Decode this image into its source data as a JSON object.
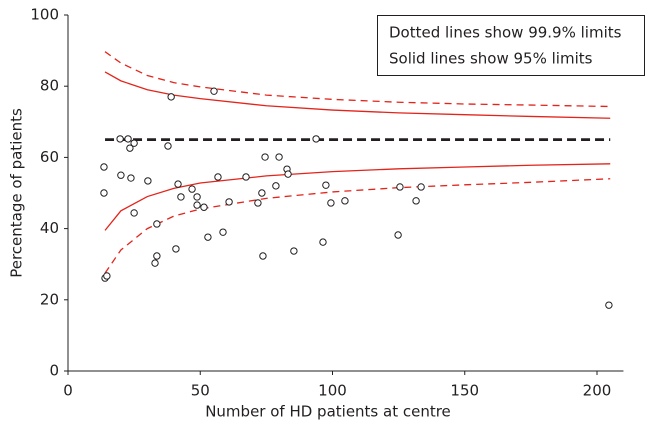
{
  "chart_data": {
    "type": "scatter",
    "x_label": "Number of HD patients at centre",
    "y_label": "Percentage of patients",
    "annotations": [
      "Dotted lines show 99.9% limits",
      "Solid lines show 95% limits"
    ],
    "xlim": [
      0,
      210
    ],
    "xticks": [
      0,
      50,
      100,
      150,
      200
    ],
    "ylim": [
      0,
      100
    ],
    "yticks": [
      0,
      20,
      40,
      60,
      80,
      100
    ],
    "grid": false,
    "points": {
      "color": "#231f20",
      "x": [
        14,
        13.6,
        13.6,
        14.7,
        19.7,
        20,
        22.7,
        23.8,
        23.4,
        25,
        25,
        30.2,
        37.8,
        39,
        33.6,
        33.6,
        32.9,
        40.8,
        41.6,
        42.7,
        46.9,
        48.8,
        48.8,
        51.4,
        52.9,
        55.2,
        56.7,
        58.6,
        60.9,
        67.3,
        71.8,
        73.3,
        74.5,
        73.7,
        78.6,
        79.8,
        82.8,
        83.2,
        85.4,
        93.8,
        97.5,
        96.4,
        99.4,
        104.7,
        124.8,
        125.5,
        131.6,
        133.5,
        204.5
      ],
      "y": [
        26.1,
        57.3,
        50,
        26.7,
        65.2,
        55,
        65.2,
        54.2,
        62.6,
        64,
        44.4,
        53.4,
        63.2,
        77,
        41.3,
        32.3,
        30.3,
        34.3,
        52.5,
        48.9,
        51.1,
        48.9,
        46.6,
        46,
        37.6,
        78.6,
        54.5,
        39,
        47.5,
        54.5,
        47.2,
        50,
        60.1,
        32.3,
        52,
        60.1,
        56.7,
        55.3,
        33.7,
        65.2,
        52.2,
        36.2,
        47.2,
        47.8,
        38.2,
        51.7,
        47.8,
        51.7,
        18.5
      ]
    },
    "line_x": [
      14,
      20,
      30,
      40,
      50,
      75,
      100,
      125,
      150,
      175,
      205
    ],
    "lines": [
      {
        "color": "#e3241b",
        "dash": "dashed",
        "values": [
          89.7,
          86.5,
          83,
          81,
          79.8,
          77.5,
          76.3,
          75.5,
          75,
          74.7,
          74.3
        ]
      },
      {
        "color": "#e3241b",
        "dash": "solid",
        "values": [
          84,
          81.5,
          79,
          77.5,
          76.5,
          74.5,
          73.3,
          72.5,
          72,
          71.5,
          71
        ]
      },
      {
        "color": "#e3241b",
        "dash": "solid",
        "values": [
          39.5,
          45,
          49,
          51.3,
          52.8,
          54.8,
          56,
          56.8,
          57.3,
          57.8,
          58.2
        ]
      },
      {
        "color": "#e3241b",
        "dash": "dashed",
        "values": [
          27.5,
          34,
          40,
          43.5,
          45.5,
          48.5,
          50.3,
          51.5,
          52.3,
          53,
          54
        ]
      },
      {
        "color": "#231f20",
        "dash": "heavy-dashed",
        "values": [
          65,
          65,
          65,
          65,
          65,
          65,
          65,
          65,
          65,
          65,
          65
        ]
      }
    ]
  }
}
